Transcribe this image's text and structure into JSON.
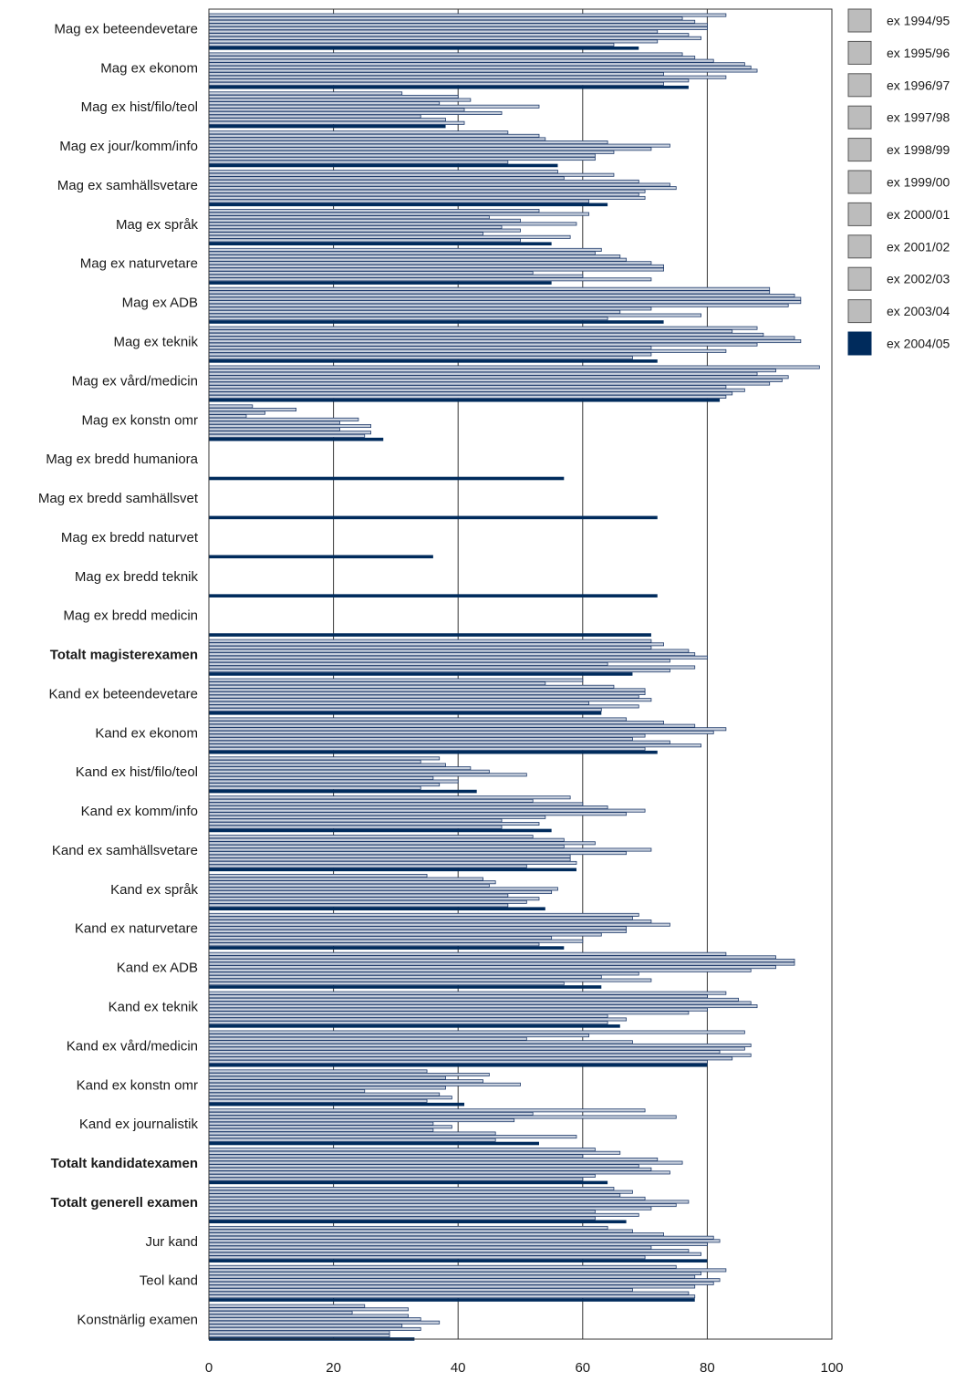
{
  "chart_data": {
    "type": "bar",
    "orientation": "horizontal",
    "xlim": [
      0,
      100
    ],
    "x_ticks": [
      "0",
      "20",
      "40",
      "60",
      "80",
      "100"
    ],
    "grid": "vertical",
    "legend_position": "right",
    "colors": {
      "old_fill": "#c8d0dd",
      "old_stroke": "#1f3b6b",
      "latest_fill": "#002b5c",
      "legend_box": "#bcbcbc",
      "axis": "#333333"
    },
    "categories": [
      "Mag ex beteendevetare",
      "Mag ex ekonom",
      "Mag ex hist/filo/teol",
      "Mag ex jour/komm/info",
      "Mag ex samhällsvetare",
      "Mag ex språk",
      "Mag ex naturvetare",
      "Mag ex ADB",
      "Mag ex teknik",
      "Mag ex vård/medicin",
      "Mag ex konstn omr",
      "Mag ex bredd humaniora",
      "Mag ex bredd samhällsvet",
      "Mag ex bredd naturvet",
      "Mag ex bredd teknik",
      "Mag ex bredd medicin",
      "Totalt magisterexamen",
      "Kand ex beteendevetare",
      "Kand ex ekonom",
      "Kand ex hist/filo/teol",
      "Kand ex komm/info",
      "Kand ex samhällsvetare",
      "Kand ex språk",
      "Kand ex naturvetare",
      "Kand ex ADB",
      "Kand ex teknik",
      "Kand ex vård/medicin",
      "Kand ex konstn omr",
      "Kand ex journalistik",
      "Totalt kandidatexamen",
      "Totalt generell examen",
      "Jur kand",
      "Teol kand",
      "Konstnärlig examen"
    ],
    "bold_categories": [
      "Totalt magisterexamen",
      "Totalt kandidatexamen",
      "Totalt generell examen"
    ],
    "series": [
      {
        "name": "ex 1994/95",
        "values": [
          83,
          76,
          31,
          48,
          56,
          53,
          63,
          90,
          88,
          98,
          7,
          null,
          null,
          null,
          null,
          null,
          71,
          60,
          67,
          37,
          58,
          52,
          35,
          69,
          83,
          83,
          86,
          35,
          70,
          62,
          65,
          64,
          75,
          25
        ]
      },
      {
        "name": "ex 1995/96",
        "values": [
          76,
          78,
          40,
          53,
          65,
          61,
          62,
          90,
          84,
          91,
          14,
          null,
          null,
          null,
          null,
          null,
          73,
          54,
          73,
          34,
          52,
          57,
          44,
          68,
          91,
          80,
          61,
          45,
          52,
          66,
          68,
          68,
          83,
          32
        ]
      },
      {
        "name": "ex 1996/97",
        "values": [
          78,
          81,
          42,
          54,
          57,
          45,
          66,
          94,
          89,
          88,
          9,
          null,
          null,
          null,
          null,
          null,
          71,
          65,
          78,
          38,
          60,
          62,
          46,
          71,
          94,
          85,
          51,
          38,
          75,
          60,
          66,
          73,
          79,
          23
        ]
      },
      {
        "name": "ex 1997/98",
        "values": [
          80,
          86,
          37,
          64,
          69,
          50,
          67,
          95,
          94,
          93,
          6,
          null,
          null,
          null,
          null,
          null,
          77,
          70,
          83,
          42,
          64,
          57,
          45,
          74,
          94,
          87,
          68,
          44,
          49,
          72,
          70,
          81,
          78,
          32
        ]
      },
      {
        "name": "ex 1998/99",
        "values": [
          80,
          87,
          53,
          74,
          74,
          59,
          71,
          95,
          95,
          92,
          24,
          null,
          null,
          null,
          null,
          null,
          78,
          70,
          81,
          45,
          70,
          71,
          56,
          67,
          91,
          88,
          87,
          50,
          36,
          76,
          77,
          82,
          82,
          34
        ]
      },
      {
        "name": "ex 1999/00",
        "values": [
          72,
          88,
          41,
          71,
          75,
          47,
          73,
          93,
          88,
          90,
          21,
          null,
          null,
          null,
          null,
          null,
          80,
          69,
          70,
          51,
          67,
          67,
          55,
          67,
          87,
          80,
          86,
          38,
          39,
          69,
          75,
          80,
          81,
          37
        ]
      },
      {
        "name": "ex 2000/01",
        "values": [
          77,
          73,
          47,
          65,
          70,
          50,
          73,
          71,
          71,
          83,
          26,
          null,
          null,
          null,
          null,
          null,
          74,
          71,
          68,
          36,
          54,
          58,
          48,
          63,
          69,
          77,
          82,
          25,
          36,
          71,
          71,
          71,
          78,
          31
        ]
      },
      {
        "name": "ex 2001/02",
        "values": [
          79,
          83,
          34,
          62,
          69,
          44,
          52,
          66,
          83,
          86,
          21,
          null,
          null,
          null,
          null,
          null,
          64,
          61,
          74,
          40,
          47,
          58,
          53,
          55,
          63,
          64,
          87,
          37,
          46,
          74,
          62,
          77,
          68,
          34
        ]
      },
      {
        "name": "ex 2002/03",
        "values": [
          72,
          77,
          38,
          62,
          70,
          58,
          60,
          79,
          71,
          84,
          26,
          null,
          null,
          null,
          null,
          null,
          78,
          69,
          79,
          37,
          53,
          59,
          51,
          60,
          71,
          67,
          84,
          39,
          59,
          62,
          69,
          79,
          77,
          29
        ]
      },
      {
        "name": "ex 2003/04",
        "values": [
          65,
          73,
          41,
          48,
          61,
          50,
          71,
          64,
          68,
          83,
          25,
          null,
          null,
          null,
          null,
          null,
          74,
          63,
          70,
          34,
          47,
          51,
          48,
          53,
          57,
          64,
          80,
          35,
          46,
          60,
          62,
          70,
          78,
          29
        ]
      },
      {
        "name": "ex 2004/05",
        "values": [
          69,
          77,
          38,
          56,
          64,
          55,
          55,
          73,
          72,
          82,
          28,
          57,
          72,
          36,
          72,
          71,
          68,
          63,
          72,
          43,
          55,
          59,
          54,
          57,
          63,
          66,
          80,
          41,
          53,
          64,
          67,
          80,
          78,
          33
        ]
      }
    ]
  }
}
